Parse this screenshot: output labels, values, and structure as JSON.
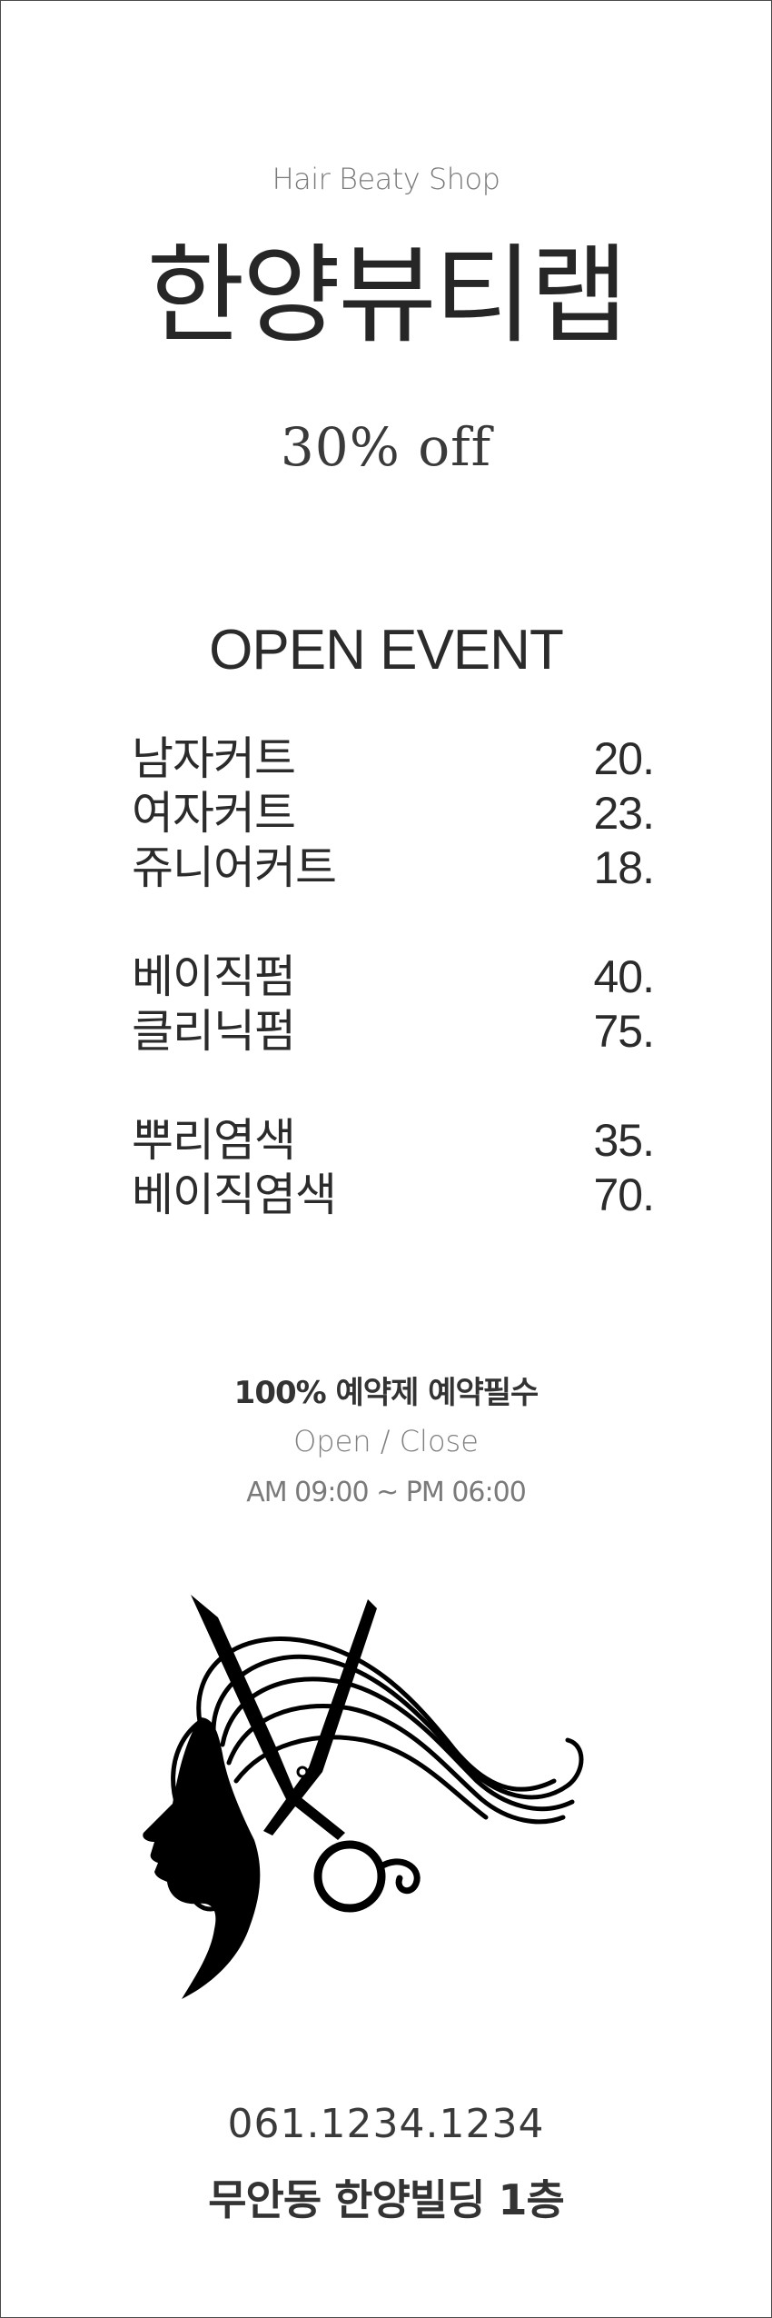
{
  "header": {
    "subtitle": "Hair Beaty Shop",
    "title": "한양뷰티랩",
    "discount": "30% off"
  },
  "event": {
    "title": "OPEN EVENT",
    "items": [
      {
        "name": "남자커트",
        "price": "20."
      },
      {
        "name": "여자커트",
        "price": "23."
      },
      {
        "name": "쥬니어커트",
        "price": "18."
      },
      {
        "name": "베이직펌",
        "price": "40."
      },
      {
        "name": "클리닉펌",
        "price": "75."
      },
      {
        "name": "뿌리염색",
        "price": "35."
      },
      {
        "name": "베이직염색",
        "price": "70."
      }
    ]
  },
  "info": {
    "reservation": "100% 예약제 예약필수",
    "hours_label": "Open / Close",
    "hours": "AM 09:00 ~ PM 06:00"
  },
  "logo": {
    "icon": "hair-salon-scissors-silhouette-icon"
  },
  "contact": {
    "phone": "061.1234.1234",
    "address": "무안동 한양빌딩 1층"
  },
  "colors": {
    "text": "#2b2b2b",
    "muted": "#7a7a7a",
    "background": "#ffffff"
  }
}
